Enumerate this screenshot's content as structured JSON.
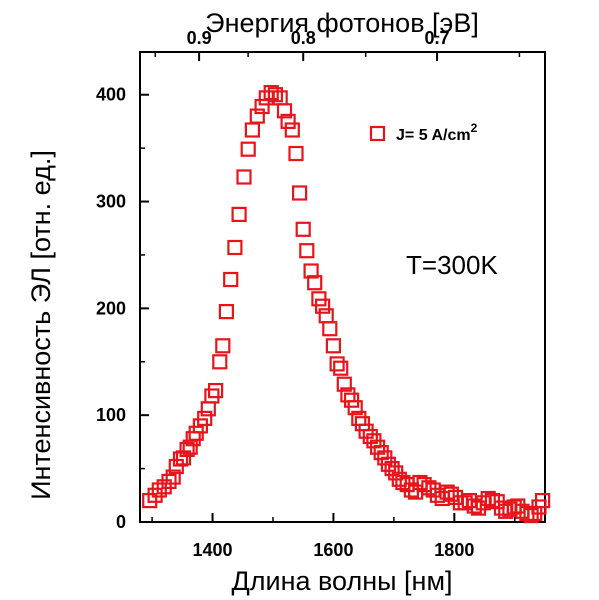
{
  "chart_data": {
    "type": "scatter",
    "title": "",
    "xlabel": "Длина волны [нм]",
    "ylabel": "Интенсивность ЭЛ [отн. ед.]",
    "top_xlabel": "Энергия фотонов [эВ]",
    "xlim": [
      1280,
      1950
    ],
    "ylim": [
      0,
      440
    ],
    "xticks": [
      1400,
      1600,
      1800
    ],
    "yticks": [
      0,
      100,
      200,
      300,
      400
    ],
    "top_ticks": [
      {
        "label": "0.9",
        "energy": 0.9
      },
      {
        "label": "0.8",
        "energy": 0.8
      },
      {
        "label": "0.7",
        "energy": 0.7
      }
    ],
    "marker_color": "#e8141c",
    "marker": "open-square",
    "legend": {
      "label_main": "J= 5 A/cm",
      "label_sup": "2",
      "position": "top-right"
    },
    "annotation": "T=300K",
    "grid": false,
    "series": [
      {
        "name": "J= 5 A/cm2",
        "points": [
          [
            1296,
            20
          ],
          [
            1305,
            25
          ],
          [
            1312,
            30
          ],
          [
            1320,
            33
          ],
          [
            1328,
            38
          ],
          [
            1335,
            42
          ],
          [
            1340,
            52
          ],
          [
            1347,
            59
          ],
          [
            1352,
            60
          ],
          [
            1358,
            68
          ],
          [
            1363,
            70
          ],
          [
            1368,
            78
          ],
          [
            1373,
            83
          ],
          [
            1380,
            90
          ],
          [
            1387,
            97
          ],
          [
            1393,
            106
          ],
          [
            1399,
            118
          ],
          [
            1405,
            123
          ],
          [
            1412,
            150
          ],
          [
            1417,
            165
          ],
          [
            1423,
            197
          ],
          [
            1430,
            227
          ],
          [
            1437,
            257
          ],
          [
            1444,
            288
          ],
          [
            1452,
            323
          ],
          [
            1459,
            349
          ],
          [
            1466,
            367
          ],
          [
            1474,
            380
          ],
          [
            1482,
            389
          ],
          [
            1489,
            397
          ],
          [
            1497,
            402
          ],
          [
            1504,
            400
          ],
          [
            1512,
            397
          ],
          [
            1519,
            385
          ],
          [
            1525,
            375
          ],
          [
            1532,
            367
          ],
          [
            1538,
            345
          ],
          [
            1544,
            308
          ],
          [
            1550,
            274
          ],
          [
            1556,
            254
          ],
          [
            1563,
            235
          ],
          [
            1569,
            224
          ],
          [
            1576,
            209
          ],
          [
            1582,
            202
          ],
          [
            1588,
            193
          ],
          [
            1594,
            181
          ],
          [
            1600,
            165
          ],
          [
            1606,
            148
          ],
          [
            1612,
            144
          ],
          [
            1618,
            129
          ],
          [
            1624,
            119
          ],
          [
            1630,
            114
          ],
          [
            1636,
            107
          ],
          [
            1642,
            97
          ],
          [
            1648,
            92
          ],
          [
            1654,
            85
          ],
          [
            1661,
            80
          ],
          [
            1667,
            76
          ],
          [
            1673,
            70
          ],
          [
            1679,
            65
          ],
          [
            1685,
            60
          ],
          [
            1691,
            54
          ],
          [
            1697,
            50
          ],
          [
            1703,
            46
          ],
          [
            1709,
            40
          ],
          [
            1715,
            37
          ],
          [
            1722,
            35
          ],
          [
            1729,
            30
          ],
          [
            1736,
            28
          ],
          [
            1743,
            37
          ],
          [
            1750,
            35
          ],
          [
            1758,
            32
          ],
          [
            1765,
            30
          ],
          [
            1772,
            25
          ],
          [
            1780,
            22
          ],
          [
            1788,
            28
          ],
          [
            1795,
            26
          ],
          [
            1802,
            23
          ],
          [
            1810,
            18
          ],
          [
            1818,
            18
          ],
          [
            1825,
            20
          ],
          [
            1833,
            15
          ],
          [
            1840,
            13
          ],
          [
            1848,
            18
          ],
          [
            1856,
            22
          ],
          [
            1863,
            20
          ],
          [
            1871,
            19
          ],
          [
            1878,
            13
          ],
          [
            1885,
            10
          ],
          [
            1892,
            12
          ],
          [
            1899,
            14
          ],
          [
            1905,
            15
          ],
          [
            1912,
            10
          ],
          [
            1920,
            8
          ],
          [
            1927,
            6
          ],
          [
            1933,
            8
          ],
          [
            1940,
            14
          ],
          [
            1946,
            20
          ]
        ]
      }
    ]
  }
}
